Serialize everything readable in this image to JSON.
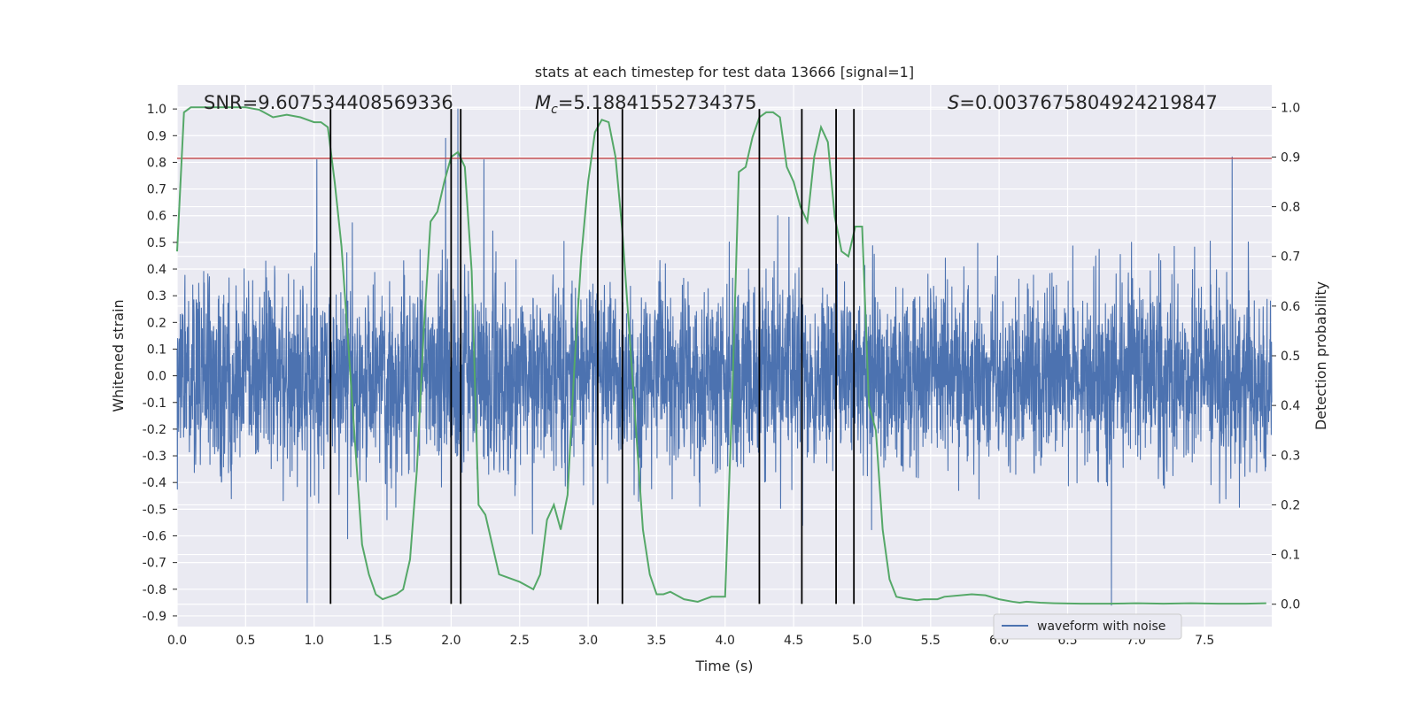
{
  "chart_data": {
    "type": "line",
    "title": "stats at each timestep for test data 13666 [signal=1]",
    "xlabel": "Time (s)",
    "ylabel_left": "Whitened strain",
    "ylabel_right": "Detection probability",
    "xlim": [
      0.0,
      7.99
    ],
    "ylim_left": [
      -0.94,
      1.09
    ],
    "ylim_right": [
      -0.045,
      1.045
    ],
    "x_ticks": [
      "0.0",
      "0.5",
      "1.0",
      "1.5",
      "2.0",
      "2.5",
      "3.0",
      "3.5",
      "4.0",
      "4.5",
      "5.0",
      "5.5",
      "6.0",
      "6.5",
      "7.0",
      "7.5"
    ],
    "y_ticks_left": [
      "1.0",
      "0.9",
      "0.8",
      "0.7",
      "0.6",
      "0.5",
      "0.4",
      "0.3",
      "0.2",
      "0.1",
      "0.0",
      "-0.1",
      "-0.2",
      "-0.3",
      "-0.4",
      "-0.5",
      "-0.6",
      "-0.7",
      "-0.8",
      "-0.9"
    ],
    "y_ticks_right": [
      "1.0",
      "0.9",
      "0.8",
      "0.7",
      "0.6",
      "0.5",
      "0.4",
      "0.3",
      "0.2",
      "0.1",
      "0.0"
    ],
    "grid": true,
    "legend": {
      "position": "lower-right",
      "entries": [
        "waveform with noise"
      ]
    },
    "annotations": {
      "snr": "SNR=9.607534408569336",
      "mc_symbol": "M",
      "mc_sub": "c",
      "mc_value": "=5.18841552734375",
      "s_symbol": "S",
      "s_value": "=0.0037675804924219847"
    },
    "series": [
      {
        "name": "waveform with noise",
        "axis": "left",
        "color": "#4c72b0",
        "description": "whitened strain noise samples, typical envelope about +/-0.45, peaks near +0.82 and -0.85",
        "envelope": 0.45,
        "peaks": [
          {
            "x": 1.02,
            "y": 0.81
          },
          {
            "x": 2.05,
            "y": 1.0
          },
          {
            "x": 1.96,
            "y": 0.89
          },
          {
            "x": 2.24,
            "y": 0.81
          },
          {
            "x": 7.7,
            "y": 0.82
          },
          {
            "x": 0.95,
            "y": -0.85
          },
          {
            "x": 6.82,
            "y": -0.86
          }
        ]
      },
      {
        "name": "detection probability",
        "axis": "right",
        "color": "#55a868",
        "x": [
          0.0,
          0.05,
          0.1,
          0.2,
          0.3,
          0.4,
          0.5,
          0.6,
          0.7,
          0.8,
          0.9,
          1.0,
          1.05,
          1.1,
          1.15,
          1.2,
          1.25,
          1.3,
          1.35,
          1.4,
          1.45,
          1.5,
          1.55,
          1.6,
          1.65,
          1.7,
          1.75,
          1.8,
          1.85,
          1.9,
          1.95,
          2.0,
          2.05,
          2.1,
          2.15,
          2.2,
          2.25,
          2.3,
          2.35,
          2.4,
          2.5,
          2.6,
          2.65,
          2.7,
          2.75,
          2.8,
          2.85,
          2.9,
          2.95,
          3.0,
          3.05,
          3.1,
          3.15,
          3.2,
          3.25,
          3.3,
          3.35,
          3.4,
          3.45,
          3.5,
          3.55,
          3.6,
          3.7,
          3.8,
          3.85,
          3.9,
          4.0,
          4.05,
          4.1,
          4.15,
          4.2,
          4.25,
          4.3,
          4.35,
          4.4,
          4.45,
          4.5,
          4.55,
          4.6,
          4.65,
          4.7,
          4.75,
          4.8,
          4.85,
          4.9,
          4.95,
          5.0,
          5.05,
          5.1,
          5.15,
          5.2,
          5.25,
          5.3,
          5.35,
          5.4,
          5.45,
          5.5,
          5.55,
          5.6,
          5.8,
          5.9,
          6.0,
          6.1,
          6.15,
          6.2,
          6.3,
          6.4,
          6.6,
          6.8,
          7.0,
          7.2,
          7.4,
          7.6,
          7.8,
          7.95
        ],
        "y": [
          0.71,
          0.99,
          1.0,
          1.0,
          1.0,
          1.0,
          1.0,
          0.995,
          0.98,
          0.985,
          0.98,
          0.97,
          0.97,
          0.96,
          0.85,
          0.72,
          0.52,
          0.32,
          0.12,
          0.06,
          0.02,
          0.01,
          0.015,
          0.02,
          0.03,
          0.09,
          0.27,
          0.55,
          0.77,
          0.79,
          0.85,
          0.9,
          0.91,
          0.88,
          0.67,
          0.2,
          0.18,
          0.12,
          0.06,
          0.055,
          0.045,
          0.03,
          0.06,
          0.17,
          0.2,
          0.15,
          0.22,
          0.48,
          0.7,
          0.85,
          0.95,
          0.975,
          0.97,
          0.9,
          0.75,
          0.55,
          0.35,
          0.15,
          0.06,
          0.02,
          0.02,
          0.025,
          0.01,
          0.005,
          0.01,
          0.015,
          0.015,
          0.4,
          0.87,
          0.88,
          0.94,
          0.98,
          0.99,
          0.99,
          0.98,
          0.88,
          0.85,
          0.8,
          0.77,
          0.9,
          0.96,
          0.93,
          0.78,
          0.71,
          0.7,
          0.76,
          0.76,
          0.4,
          0.35,
          0.15,
          0.05,
          0.015,
          0.012,
          0.01,
          0.008,
          0.01,
          0.01,
          0.01,
          0.015,
          0.02,
          0.018,
          0.01,
          0.005,
          0.003,
          0.005,
          0.003,
          0.002,
          0.001,
          0.001,
          0.002,
          0.001,
          0.002,
          0.001,
          0.001,
          0.002
        ]
      },
      {
        "name": "threshold",
        "axis": "left",
        "color": "#c44e52",
        "y": 0.815
      }
    ],
    "vertical_lines": {
      "color": "#000000",
      "x": [
        1.12,
        2.0,
        2.07,
        3.07,
        3.25,
        4.25,
        4.56,
        4.81,
        4.94
      ],
      "ymin_left": -0.855,
      "ymax_left": 1.0
    }
  }
}
